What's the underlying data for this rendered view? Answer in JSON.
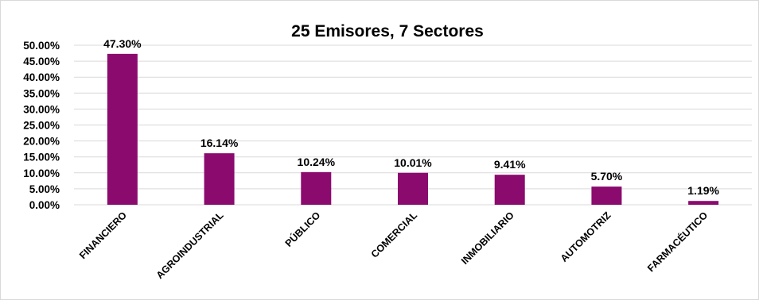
{
  "chart_data": {
    "type": "bar",
    "title": "25 Emisores, 7 Sectores",
    "categories": [
      "FINANCIERO",
      "AGROINDUSTRIAL",
      "PÚBLICO",
      "COMERCIAL",
      "INMOBILIARIO",
      "AUTOMOTRIZ",
      "FARMACÉUTICO"
    ],
    "values": [
      47.3,
      16.14,
      10.24,
      10.01,
      9.41,
      5.7,
      1.19
    ],
    "data_labels": [
      "47.30%",
      "16.14%",
      "10.24%",
      "10.01%",
      "9.41%",
      "5.70%",
      "1.19%"
    ],
    "yticks": [
      "0.00%",
      "5.00%",
      "10.00%",
      "15.00%",
      "20.00%",
      "25.00%",
      "30.00%",
      "35.00%",
      "40.00%",
      "45.00%",
      "50.00%"
    ],
    "ytick_values": [
      0,
      5,
      10,
      15,
      20,
      25,
      30,
      35,
      40,
      45,
      50
    ],
    "ylim": [
      0,
      50
    ],
    "xlabel": "",
    "ylabel": "",
    "grid": true,
    "legend": "none",
    "bar_color": "#8B0A6E"
  }
}
